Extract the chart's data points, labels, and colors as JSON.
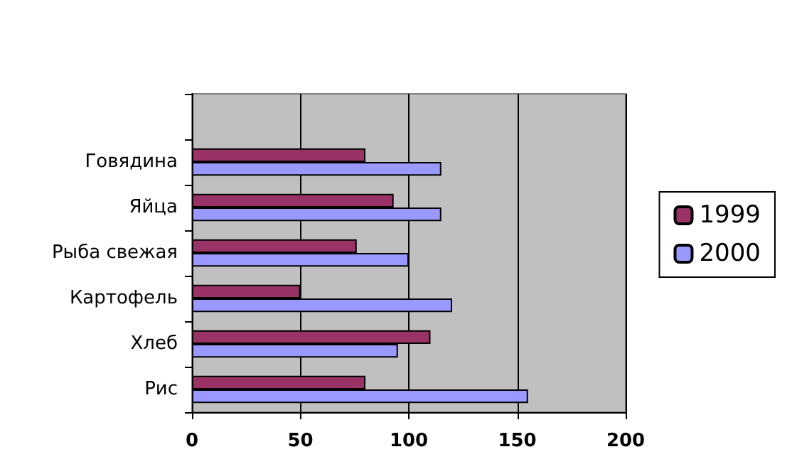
{
  "chart_data": {
    "type": "bar",
    "orientation": "horizontal",
    "categories": [
      null,
      "Говядина",
      "Яйца",
      "Рыба свежая",
      "Картофель",
      "Хлеб",
      "Рис"
    ],
    "series": [
      {
        "name": "1999",
        "color": "#993366",
        "values": [
          null,
          80,
          93,
          76,
          50,
          110,
          80
        ]
      },
      {
        "name": "2000",
        "color": "#9999ff",
        "values": [
          null,
          115,
          115,
          100,
          120,
          95,
          155
        ]
      }
    ],
    "xlim": [
      0,
      200
    ],
    "xticks": [
      0,
      50,
      100,
      150,
      200
    ],
    "grid": "x",
    "legend": "right"
  }
}
